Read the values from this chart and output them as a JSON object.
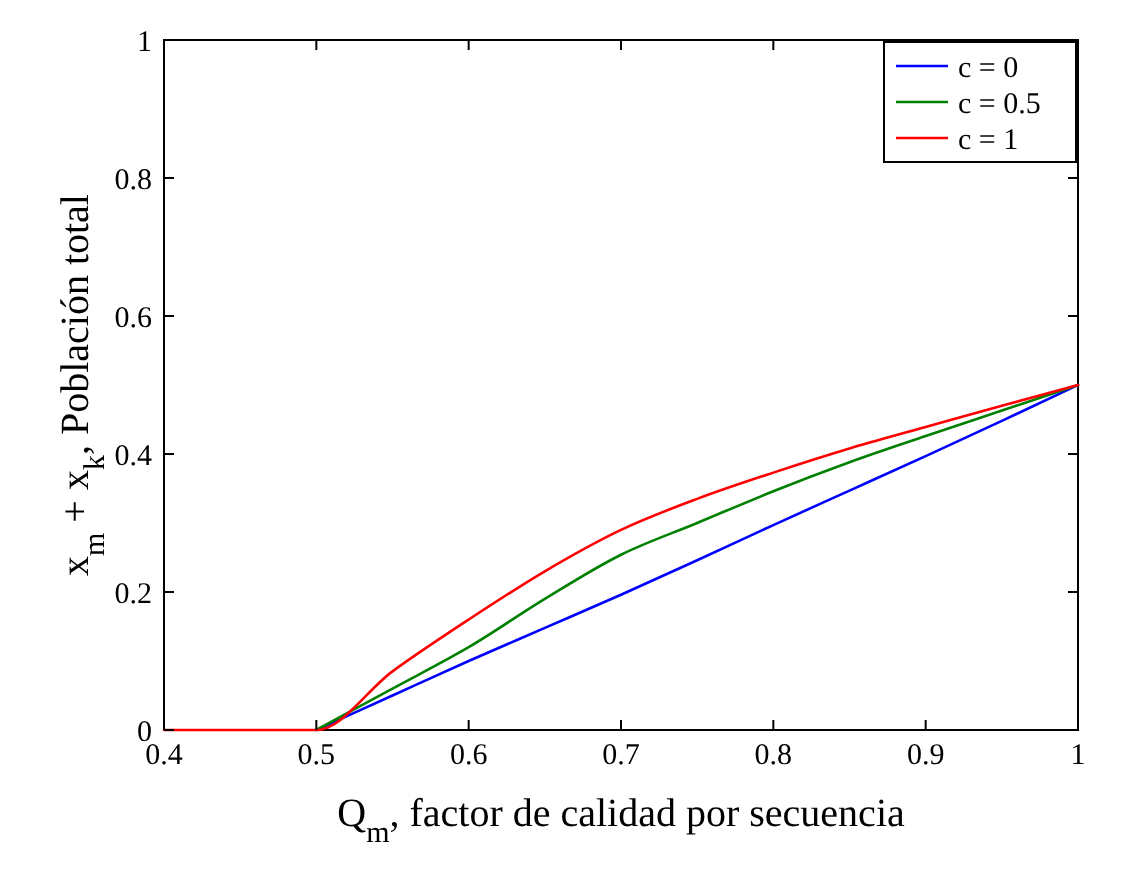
{
  "chart_data": {
    "type": "line",
    "xlabel": "Q$_{m}$, factor de calidad por secuencia",
    "ylabel": "x$_{m}$ + x$_{k}$, Población total",
    "x": [
      0.4,
      0.45,
      0.5,
      0.55,
      0.6,
      0.65,
      0.7,
      0.75,
      0.8,
      0.85,
      0.9,
      0.95,
      1
    ],
    "series": [
      {
        "name": "c = 0",
        "color": "#0000ff",
        "values": [
          null,
          null,
          0,
          0.05,
          0.1,
          0.148,
          0.196,
          0.246,
          0.297,
          0.347,
          0.397,
          0.448,
          0.5
        ]
      },
      {
        "name": "c = 0.5",
        "color": "#008000",
        "values": [
          null,
          null,
          0,
          0.06,
          0.12,
          0.19,
          0.254,
          0.3,
          0.346,
          0.388,
          0.426,
          0.463,
          0.5
        ]
      },
      {
        "name": "c = 1",
        "color": "#ff0000",
        "values": [
          0,
          0,
          0,
          0.085,
          0.16,
          0.23,
          0.29,
          0.335,
          0.373,
          0.408,
          0.439,
          0.47,
          0.5
        ]
      }
    ],
    "xlim": [
      0.4,
      1
    ],
    "xticks": [
      0.4,
      0.5,
      0.6,
      0.7,
      0.8,
      0.9,
      1
    ],
    "ylim": [
      0,
      1
    ],
    "yticks": [
      0,
      0.2,
      0.4,
      0.6,
      0.8,
      1
    ],
    "grid": false,
    "legend": "top right",
    "marker": "none",
    "line_style": "solid"
  }
}
